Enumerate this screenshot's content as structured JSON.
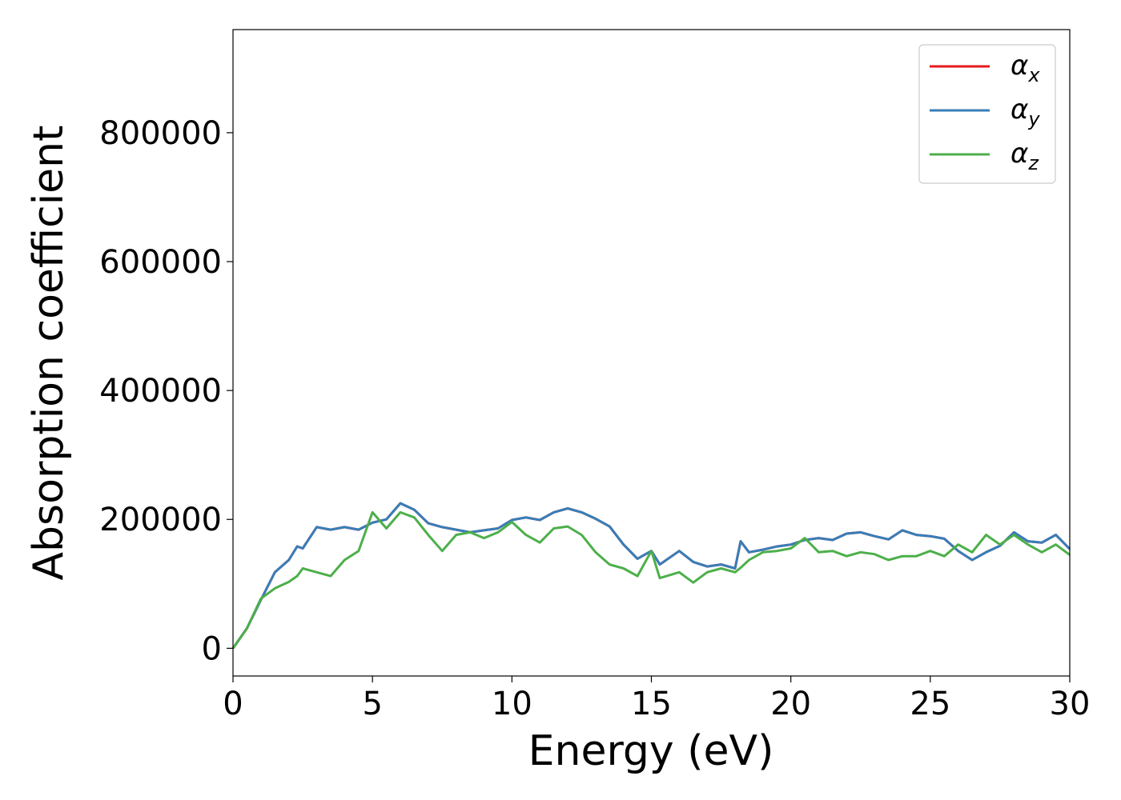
{
  "chart_data": {
    "type": "line",
    "title": "",
    "xlabel": "Energy (eV)",
    "ylabel": "Absorption coefficient",
    "xlim": [
      0,
      30
    ],
    "ylim": [
      -43000,
      960000
    ],
    "xticks": [
      0,
      5,
      10,
      15,
      20,
      25,
      30
    ],
    "xtick_labels": [
      "0",
      "5",
      "10",
      "15",
      "20",
      "25",
      "30"
    ],
    "yticks": [
      0,
      200000,
      400000,
      600000,
      800000
    ],
    "ytick_labels": [
      "0",
      "200000",
      "400000",
      "600000",
      "800000"
    ],
    "grid": false,
    "legend_placement": "top-right",
    "x": [
      0,
      0.5,
      1,
      1.5,
      2,
      2.3,
      2.5,
      3,
      3.5,
      4,
      4.5,
      5,
      5.5,
      6,
      6.5,
      7,
      7.5,
      8,
      8.5,
      9,
      9.5,
      10,
      10.5,
      11,
      11.5,
      12,
      12.5,
      13,
      13.5,
      14,
      14.5,
      15,
      15.3,
      16,
      16.5,
      17,
      17.5,
      18,
      18.2,
      18.5,
      19,
      19.5,
      20,
      20.5,
      21,
      21.5,
      22,
      22.5,
      23,
      23.5,
      24,
      24.5,
      25,
      25.5,
      26,
      26.5,
      27,
      27.5,
      28,
      28.5,
      29,
      29.5,
      30
    ],
    "series": [
      {
        "name": "αx",
        "symbol": "α",
        "subscript": "x",
        "color": "#e41a1c",
        "values": [
          0,
          31000,
          75000,
          118000,
          137000,
          158000,
          155000,
          188000,
          184000,
          188000,
          184000,
          195000,
          200000,
          225000,
          215000,
          194000,
          188000,
          184000,
          180000,
          183000,
          186000,
          199000,
          203000,
          199000,
          211000,
          217000,
          211000,
          201000,
          189000,
          161000,
          139000,
          151000,
          130000,
          151000,
          134000,
          127000,
          130000,
          124000,
          166000,
          149000,
          153000,
          158000,
          161000,
          168000,
          171000,
          168000,
          178000,
          180000,
          174000,
          169000,
          183000,
          176000,
          174000,
          170000,
          151000,
          137000,
          149000,
          159000,
          180000,
          166000,
          164000,
          176000,
          154000
        ]
      },
      {
        "name": "αy",
        "symbol": "α",
        "subscript": "y",
        "color": "#377eb8",
        "values": [
          0,
          31000,
          75000,
          118000,
          137000,
          158000,
          155000,
          188000,
          184000,
          188000,
          184000,
          195000,
          200000,
          225000,
          215000,
          194000,
          188000,
          184000,
          180000,
          183000,
          186000,
          199000,
          203000,
          199000,
          211000,
          217000,
          211000,
          201000,
          189000,
          161000,
          139000,
          151000,
          130000,
          151000,
          134000,
          127000,
          130000,
          124000,
          166000,
          149000,
          153000,
          158000,
          161000,
          168000,
          171000,
          168000,
          178000,
          180000,
          174000,
          169000,
          183000,
          176000,
          174000,
          170000,
          151000,
          137000,
          149000,
          159000,
          180000,
          166000,
          164000,
          176000,
          154000
        ]
      },
      {
        "name": "αz",
        "symbol": "α",
        "subscript": "z",
        "color": "#4daf4a",
        "values": [
          0,
          31000,
          77000,
          93000,
          103000,
          112000,
          124000,
          118000,
          112000,
          137000,
          151000,
          211000,
          186000,
          211000,
          203000,
          176000,
          151000,
          176000,
          180000,
          171000,
          180000,
          196000,
          176000,
          164000,
          186000,
          189000,
          176000,
          149000,
          130000,
          124000,
          112000,
          151000,
          109000,
          118000,
          102000,
          118000,
          124000,
          118000,
          125000,
          137000,
          149000,
          151000,
          155000,
          171000,
          149000,
          151000,
          143000,
          149000,
          146000,
          137000,
          143000,
          143000,
          151000,
          143000,
          161000,
          149000,
          176000,
          161000,
          176000,
          161000,
          149000,
          161000,
          145000
        ]
      }
    ]
  }
}
